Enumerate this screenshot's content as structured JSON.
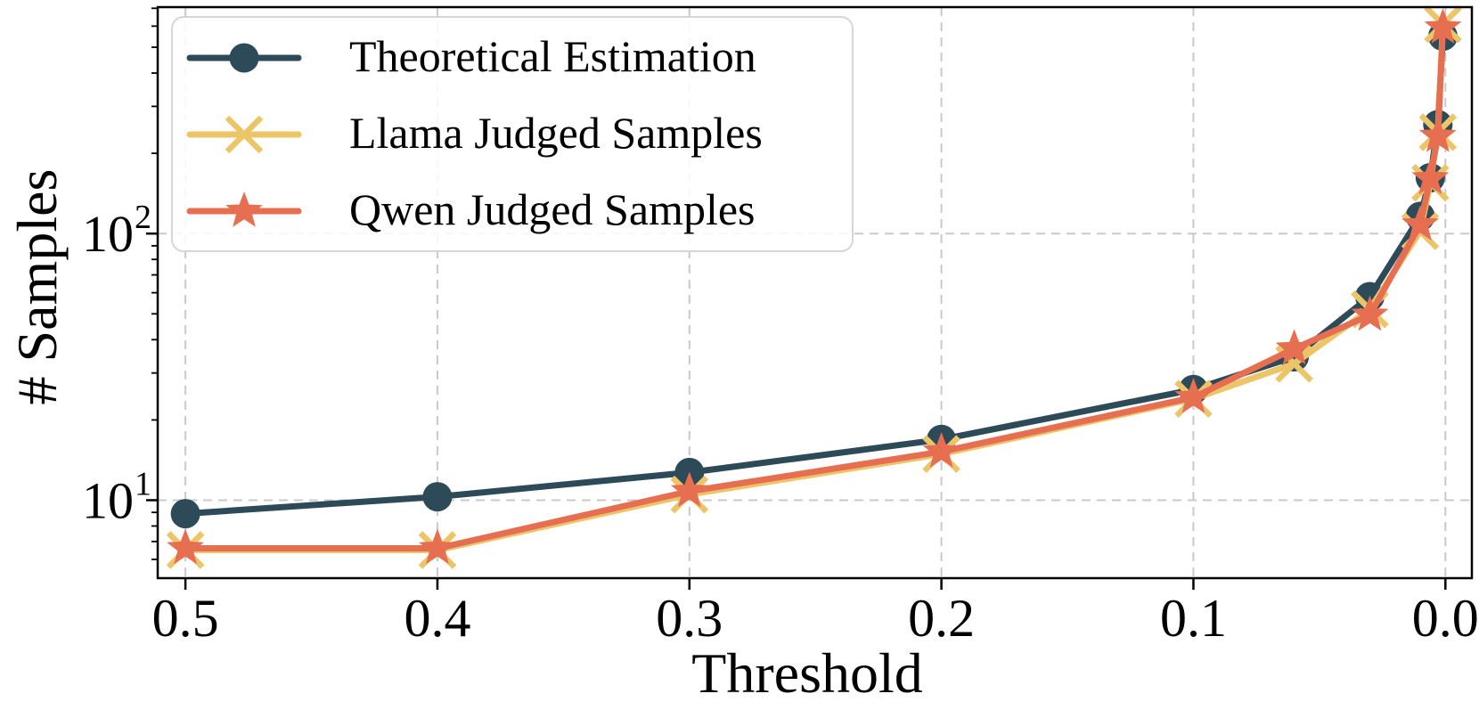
{
  "figure": {
    "background": "#ffffff"
  },
  "chart_data": {
    "type": "line",
    "title": "",
    "xlabel": "Threshold",
    "ylabel": "# Samples",
    "x": [
      0.5,
      0.4,
      0.3,
      0.2,
      0.1,
      0.06,
      0.03,
      0.01,
      0.006,
      0.003,
      0.001
    ],
    "series": [
      {
        "name": "Theoretical Estimation",
        "color": "#2d4a58",
        "marker": "circle",
        "values": [
          8.9,
          10.3,
          12.7,
          16.9,
          26.0,
          34.5,
          58,
          116,
          162,
          256,
          550
        ]
      },
      {
        "name": "Llama Judged Samples",
        "color": "#ecc569",
        "marker": "x",
        "values": [
          6.5,
          6.5,
          10.5,
          14.9,
          24.0,
          32.5,
          52,
          102,
          155,
          240,
          610
        ]
      },
      {
        "name": "Qwen Judged Samples",
        "color": "#e76f51",
        "marker": "star",
        "values": [
          6.6,
          6.6,
          10.8,
          15.2,
          24.3,
          37.0,
          49.5,
          108,
          161,
          232,
          592
        ]
      }
    ],
    "x_axis": {
      "tick_labels": [
        "0.5",
        "0.4",
        "0.3",
        "0.2",
        "0.1",
        "0.0"
      ],
      "tick_values": [
        0.5,
        0.4,
        0.3,
        0.2,
        0.1,
        0.0
      ],
      "reversed": true,
      "range": [
        0.511,
        -0.0105
      ]
    },
    "y_axis": {
      "scale": "log",
      "ticks": [
        {
          "value": 10,
          "base": "10",
          "exponent": "1"
        },
        {
          "value": 100,
          "base": "10",
          "exponent": "2"
        }
      ],
      "range": [
        5.1,
        707
      ]
    },
    "grid": {
      "visible": true,
      "style": "dashed",
      "color": "#c9c9c9"
    },
    "legend": {
      "position": "upper-left"
    },
    "styles": {
      "spine_color": "#000000",
      "tick_color": "#000000"
    }
  }
}
